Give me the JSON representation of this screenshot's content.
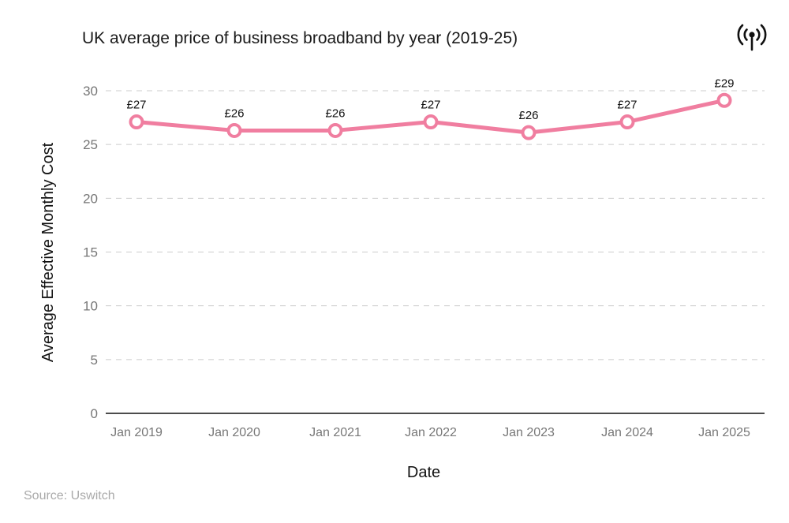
{
  "header": {
    "icon": "broadcast-signal-icon"
  },
  "source": "Source: Uswitch",
  "colors": {
    "line": "#f07ea0",
    "axis": "#111111",
    "grid": "#cccccc"
  },
  "chart_data": {
    "type": "line",
    "title": "UK average price of business broadband by year (2019-25)",
    "xlabel": "Date",
    "ylabel": "Average Effective Monthly Cost",
    "categories": [
      "Jan 2019",
      "Jan 2020",
      "Jan 2021",
      "Jan 2022",
      "Jan 2023",
      "Jan 2024",
      "Jan 2025"
    ],
    "series": [
      {
        "name": "Average Effective Monthly Cost",
        "values": [
          27.1,
          26.3,
          26.3,
          27.1,
          26.1,
          27.1,
          29.1
        ],
        "labels": [
          "£27",
          "£26",
          "£26",
          "£27",
          "£26",
          "£27",
          "£29"
        ]
      }
    ],
    "ylim": [
      0,
      30
    ],
    "yticks": [
      0,
      5,
      10,
      15,
      20,
      25,
      30
    ],
    "grid": true
  }
}
